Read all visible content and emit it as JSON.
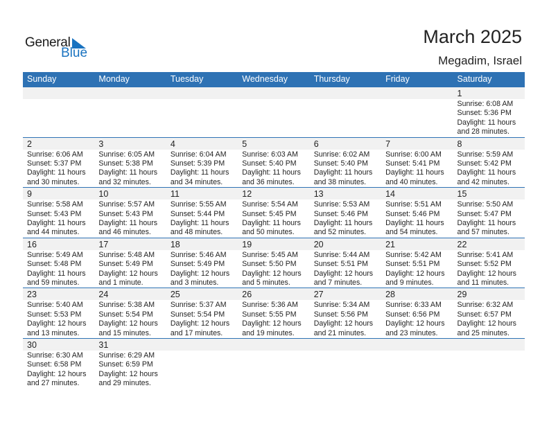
{
  "logo": {
    "general": "General",
    "blue": "Blue"
  },
  "title": "March 2025",
  "location": "Megadim, Israel",
  "accent_color": "#2E72B4",
  "weekdays": [
    "Sunday",
    "Monday",
    "Tuesday",
    "Wednesday",
    "Thursday",
    "Friday",
    "Saturday"
  ],
  "weeks": [
    [
      null,
      null,
      null,
      null,
      null,
      null,
      {
        "day": "1",
        "sunrise": "Sunrise: 6:08 AM",
        "sunset": "Sunset: 5:36 PM",
        "daylight1": "Daylight: 11 hours",
        "daylight2": "and 28 minutes."
      }
    ],
    [
      {
        "day": "2",
        "sunrise": "Sunrise: 6:06 AM",
        "sunset": "Sunset: 5:37 PM",
        "daylight1": "Daylight: 11 hours",
        "daylight2": "and 30 minutes."
      },
      {
        "day": "3",
        "sunrise": "Sunrise: 6:05 AM",
        "sunset": "Sunset: 5:38 PM",
        "daylight1": "Daylight: 11 hours",
        "daylight2": "and 32 minutes."
      },
      {
        "day": "4",
        "sunrise": "Sunrise: 6:04 AM",
        "sunset": "Sunset: 5:39 PM",
        "daylight1": "Daylight: 11 hours",
        "daylight2": "and 34 minutes."
      },
      {
        "day": "5",
        "sunrise": "Sunrise: 6:03 AM",
        "sunset": "Sunset: 5:40 PM",
        "daylight1": "Daylight: 11 hours",
        "daylight2": "and 36 minutes."
      },
      {
        "day": "6",
        "sunrise": "Sunrise: 6:02 AM",
        "sunset": "Sunset: 5:40 PM",
        "daylight1": "Daylight: 11 hours",
        "daylight2": "and 38 minutes."
      },
      {
        "day": "7",
        "sunrise": "Sunrise: 6:00 AM",
        "sunset": "Sunset: 5:41 PM",
        "daylight1": "Daylight: 11 hours",
        "daylight2": "and 40 minutes."
      },
      {
        "day": "8",
        "sunrise": "Sunrise: 5:59 AM",
        "sunset": "Sunset: 5:42 PM",
        "daylight1": "Daylight: 11 hours",
        "daylight2": "and 42 minutes."
      }
    ],
    [
      {
        "day": "9",
        "sunrise": "Sunrise: 5:58 AM",
        "sunset": "Sunset: 5:43 PM",
        "daylight1": "Daylight: 11 hours",
        "daylight2": "and 44 minutes."
      },
      {
        "day": "10",
        "sunrise": "Sunrise: 5:57 AM",
        "sunset": "Sunset: 5:43 PM",
        "daylight1": "Daylight: 11 hours",
        "daylight2": "and 46 minutes."
      },
      {
        "day": "11",
        "sunrise": "Sunrise: 5:55 AM",
        "sunset": "Sunset: 5:44 PM",
        "daylight1": "Daylight: 11 hours",
        "daylight2": "and 48 minutes."
      },
      {
        "day": "12",
        "sunrise": "Sunrise: 5:54 AM",
        "sunset": "Sunset: 5:45 PM",
        "daylight1": "Daylight: 11 hours",
        "daylight2": "and 50 minutes."
      },
      {
        "day": "13",
        "sunrise": "Sunrise: 5:53 AM",
        "sunset": "Sunset: 5:46 PM",
        "daylight1": "Daylight: 11 hours",
        "daylight2": "and 52 minutes."
      },
      {
        "day": "14",
        "sunrise": "Sunrise: 5:51 AM",
        "sunset": "Sunset: 5:46 PM",
        "daylight1": "Daylight: 11 hours",
        "daylight2": "and 54 minutes."
      },
      {
        "day": "15",
        "sunrise": "Sunrise: 5:50 AM",
        "sunset": "Sunset: 5:47 PM",
        "daylight1": "Daylight: 11 hours",
        "daylight2": "and 57 minutes."
      }
    ],
    [
      {
        "day": "16",
        "sunrise": "Sunrise: 5:49 AM",
        "sunset": "Sunset: 5:48 PM",
        "daylight1": "Daylight: 11 hours",
        "daylight2": "and 59 minutes."
      },
      {
        "day": "17",
        "sunrise": "Sunrise: 5:48 AM",
        "sunset": "Sunset: 5:49 PM",
        "daylight1": "Daylight: 12 hours",
        "daylight2": "and 1 minute."
      },
      {
        "day": "18",
        "sunrise": "Sunrise: 5:46 AM",
        "sunset": "Sunset: 5:49 PM",
        "daylight1": "Daylight: 12 hours",
        "daylight2": "and 3 minutes."
      },
      {
        "day": "19",
        "sunrise": "Sunrise: 5:45 AM",
        "sunset": "Sunset: 5:50 PM",
        "daylight1": "Daylight: 12 hours",
        "daylight2": "and 5 minutes."
      },
      {
        "day": "20",
        "sunrise": "Sunrise: 5:44 AM",
        "sunset": "Sunset: 5:51 PM",
        "daylight1": "Daylight: 12 hours",
        "daylight2": "and 7 minutes."
      },
      {
        "day": "21",
        "sunrise": "Sunrise: 5:42 AM",
        "sunset": "Sunset: 5:51 PM",
        "daylight1": "Daylight: 12 hours",
        "daylight2": "and 9 minutes."
      },
      {
        "day": "22",
        "sunrise": "Sunrise: 5:41 AM",
        "sunset": "Sunset: 5:52 PM",
        "daylight1": "Daylight: 12 hours",
        "daylight2": "and 11 minutes."
      }
    ],
    [
      {
        "day": "23",
        "sunrise": "Sunrise: 5:40 AM",
        "sunset": "Sunset: 5:53 PM",
        "daylight1": "Daylight: 12 hours",
        "daylight2": "and 13 minutes."
      },
      {
        "day": "24",
        "sunrise": "Sunrise: 5:38 AM",
        "sunset": "Sunset: 5:54 PM",
        "daylight1": "Daylight: 12 hours",
        "daylight2": "and 15 minutes."
      },
      {
        "day": "25",
        "sunrise": "Sunrise: 5:37 AM",
        "sunset": "Sunset: 5:54 PM",
        "daylight1": "Daylight: 12 hours",
        "daylight2": "and 17 minutes."
      },
      {
        "day": "26",
        "sunrise": "Sunrise: 5:36 AM",
        "sunset": "Sunset: 5:55 PM",
        "daylight1": "Daylight: 12 hours",
        "daylight2": "and 19 minutes."
      },
      {
        "day": "27",
        "sunrise": "Sunrise: 5:34 AM",
        "sunset": "Sunset: 5:56 PM",
        "daylight1": "Daylight: 12 hours",
        "daylight2": "and 21 minutes."
      },
      {
        "day": "28",
        "sunrise": "Sunrise: 6:33 AM",
        "sunset": "Sunset: 6:56 PM",
        "daylight1": "Daylight: 12 hours",
        "daylight2": "and 23 minutes."
      },
      {
        "day": "29",
        "sunrise": "Sunrise: 6:32 AM",
        "sunset": "Sunset: 6:57 PM",
        "daylight1": "Daylight: 12 hours",
        "daylight2": "and 25 minutes."
      }
    ],
    [
      {
        "day": "30",
        "sunrise": "Sunrise: 6:30 AM",
        "sunset": "Sunset: 6:58 PM",
        "daylight1": "Daylight: 12 hours",
        "daylight2": "and 27 minutes."
      },
      {
        "day": "31",
        "sunrise": "Sunrise: 6:29 AM",
        "sunset": "Sunset: 6:59 PM",
        "daylight1": "Daylight: 12 hours",
        "daylight2": "and 29 minutes."
      },
      null,
      null,
      null,
      null,
      null
    ]
  ]
}
